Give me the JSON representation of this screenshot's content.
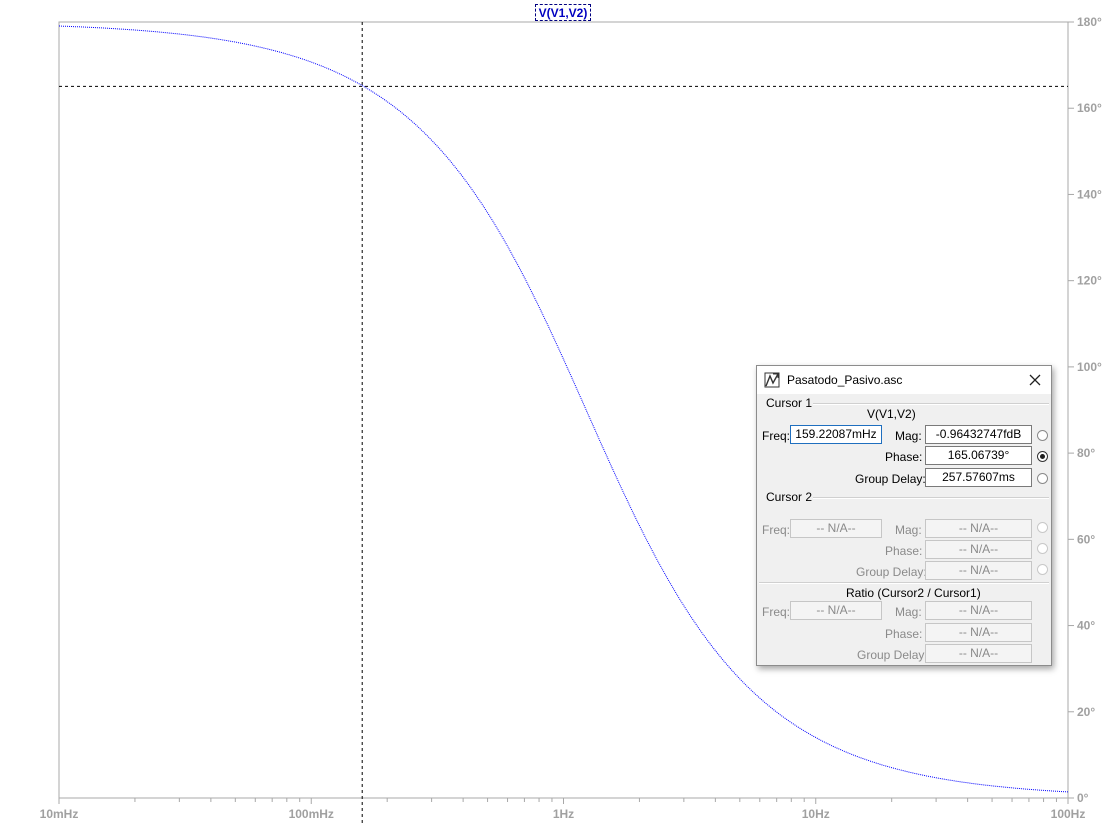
{
  "trace_label": "V(V1,V2)",
  "chart_data": {
    "type": "line",
    "x_scale": "log",
    "xlim": [
      0.01,
      100
    ],
    "ylim": [
      0,
      180
    ],
    "x_ticks": [
      "10mHz",
      "100mHz",
      "1Hz",
      "10Hz",
      "100Hz"
    ],
    "y_ticks": [
      "0°",
      "20°",
      "40°",
      "60°",
      "80°",
      "100°",
      "120°",
      "140°",
      "160°",
      "180°"
    ],
    "series": [
      {
        "name": "V(V1,V2)",
        "color": "#0000ff",
        "x": [
          0.01,
          0.02,
          0.05,
          0.1,
          0.159,
          0.2,
          0.3,
          0.5,
          0.7,
          1,
          1.5,
          2,
          3,
          5,
          7,
          10,
          20,
          50,
          100
        ],
        "y": [
          178.2,
          176.4,
          171,
          162.2,
          165.1,
          160.3,
          150.9,
          134.3,
          121.4,
          103.9,
          82.1,
          69.5,
          51.2,
          34.4,
          25.8,
          18.4,
          9.2,
          3.8,
          1.9
        ]
      }
    ],
    "cursor": {
      "x": 0.15922087,
      "y": 165.06739
    },
    "grid": false
  },
  "dialog": {
    "title": "Pasatodo_Pasivo.asc",
    "close_icon": "close-icon",
    "cursor1": {
      "header": "Cursor 1",
      "trace": "V(V1,V2)",
      "freq_label": "Freq:",
      "freq_value": "159.22087mHz",
      "mag_label": "Mag:",
      "mag_value": "-0.96432747fdB",
      "phase_label": "Phase:",
      "phase_value": "165.06739°",
      "gd_label": "Group Delay:",
      "gd_value": "257.57607ms"
    },
    "cursor2": {
      "header": "Cursor 2",
      "freq_label": "Freq:",
      "freq_value": "-- N/A--",
      "mag_label": "Mag:",
      "mag_value": "-- N/A--",
      "phase_label": "Phase:",
      "phase_value": "-- N/A--",
      "gd_label": "Group Delay:",
      "gd_value": "-- N/A--"
    },
    "ratio": {
      "header": "Ratio (Cursor2 / Cursor1)",
      "freq_label": "Freq:",
      "freq_value": "-- N/A--",
      "mag_label": "Mag:",
      "mag_value": "-- N/A--",
      "phase_label": "Phase:",
      "phase_value": "-- N/A--",
      "gd_label": "Group Delay:",
      "gd_value": "-- N/A--"
    }
  }
}
